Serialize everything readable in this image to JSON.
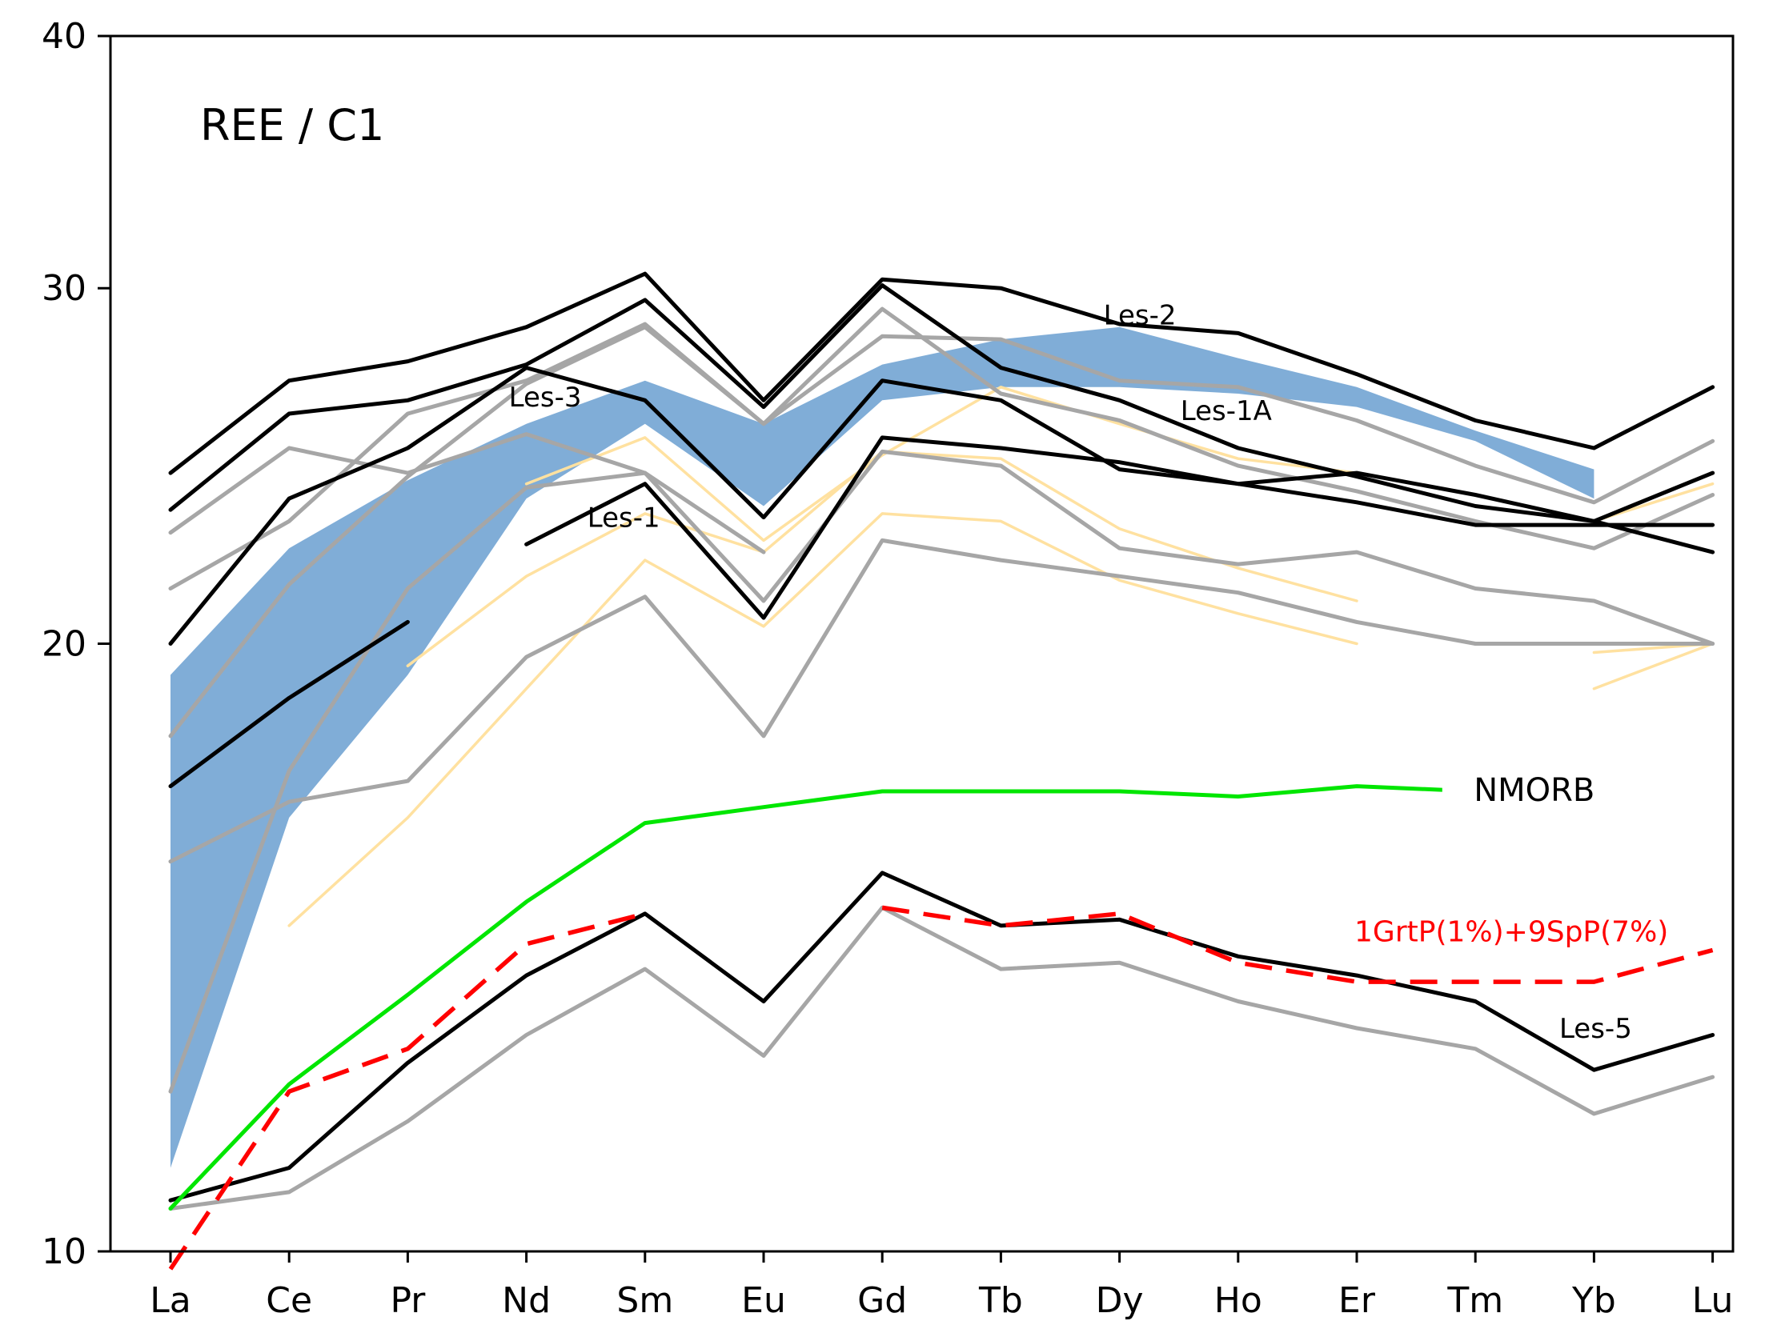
{
  "chart_data": {
    "type": "line",
    "title": "REE / C1",
    "xlabel": "",
    "ylabel": "",
    "y_scale": "log",
    "ylim": [
      10,
      40
    ],
    "yticks": [
      "10",
      "20",
      "30",
      "40"
    ],
    "categories": [
      "La",
      "Ce",
      "Pr",
      "Nd",
      "Sm",
      "Eu",
      "Gd",
      "Tb",
      "Dy",
      "Ho",
      "Er",
      "Tm",
      "Yb",
      "Lu"
    ],
    "grid": false,
    "legend": "none",
    "colors": {
      "black": "#000000",
      "gray": "#a6a6a6",
      "yellow": "#ffe1a0",
      "band": "#6a9fd0",
      "nmorb": "#00e600",
      "model": "#ff0000"
    },
    "band": {
      "upper": [
        19.3,
        22.3,
        24.1,
        25.7,
        27.0,
        25.7,
        27.5,
        28.3,
        28.7,
        27.7,
        26.8,
        25.5,
        24.4,
        null
      ],
      "lower": [
        11.0,
        16.4,
        19.3,
        23.6,
        25.7,
        23.4,
        26.4,
        26.8,
        26.8,
        26.6,
        26.2,
        25.2,
        23.6,
        null
      ]
    },
    "series": [
      {
        "color": "black",
        "values": [
          24.3,
          27.0,
          27.6,
          28.7,
          30.5,
          26.4,
          30.3,
          30.0,
          28.8,
          28.5,
          27.2,
          25.8,
          25.0,
          26.8
        ]
      },
      {
        "color": "black",
        "values": [
          23.3,
          26.0,
          26.4,
          27.5,
          29.6,
          26.2,
          30.1,
          27.4,
          26.4,
          25.0,
          24.2,
          23.4,
          23.0,
          24.3
        ]
      },
      {
        "color": "black",
        "values": [
          20.0,
          23.6,
          25.0,
          27.4,
          26.4,
          23.1,
          27.0,
          26.4,
          24.4,
          24.0,
          24.3,
          23.7,
          23.0,
          22.2
        ]
      },
      {
        "color": "black",
        "values": [
          null,
          null,
          null,
          22.4,
          24.0,
          20.6,
          25.3,
          25.0,
          24.6,
          24.0,
          23.5,
          22.9,
          22.9,
          22.9
        ]
      },
      {
        "color": "black",
        "values": [
          17.0,
          18.8,
          20.5,
          null,
          null,
          null,
          null,
          null,
          null,
          null,
          null,
          null,
          null,
          null
        ]
      },
      {
        "color": "black",
        "values": [
          10.6,
          11.0,
          12.4,
          13.7,
          14.7,
          13.3,
          15.4,
          14.5,
          14.6,
          14.0,
          13.7,
          13.3,
          12.3,
          12.8
        ]
      },
      {
        "color": "gray",
        "values": [
          22.7,
          25.0,
          24.3,
          25.4,
          24.3,
          21.0,
          24.9,
          24.5,
          22.3,
          21.9,
          22.2,
          21.3,
          21.0,
          20.0
        ]
      },
      {
        "color": "gray",
        "values": [
          21.3,
          23.0,
          26.0,
          27.0,
          28.8,
          25.7,
          29.3,
          26.6,
          25.8,
          24.5,
          23.8,
          23.0,
          22.3,
          23.7
        ]
      },
      {
        "color": "gray",
        "values": [
          18.0,
          21.4,
          24.2,
          26.9,
          28.7,
          25.7,
          28.4,
          28.3,
          27.0,
          26.8,
          25.8,
          24.5,
          23.5,
          25.2
        ]
      },
      {
        "color": "gray",
        "values": [
          15.6,
          16.7,
          17.1,
          19.7,
          21.1,
          18.0,
          22.5,
          22.0,
          21.6,
          21.2,
          20.5,
          20.0,
          20.0,
          20.0
        ]
      },
      {
        "color": "gray",
        "values": [
          12.0,
          17.3,
          21.3,
          23.9,
          24.3,
          22.2,
          null,
          null,
          null,
          null,
          null,
          null,
          null,
          null
        ]
      },
      {
        "color": "gray",
        "values": [
          10.5,
          10.7,
          11.6,
          12.8,
          13.8,
          12.5,
          14.8,
          13.8,
          13.9,
          13.3,
          12.9,
          12.6,
          11.7,
          12.2
        ]
      },
      {
        "color": "yellow",
        "values": [
          null,
          14.5,
          16.4,
          19.0,
          22.0,
          20.4,
          23.2,
          23.0,
          21.5,
          20.7,
          20.0,
          null,
          19.0,
          20.0
        ]
      },
      {
        "color": "yellow",
        "values": [
          null,
          null,
          19.5,
          21.6,
          23.2,
          22.2,
          24.9,
          24.7,
          22.8,
          21.8,
          21.0,
          null,
          null,
          null
        ]
      },
      {
        "color": "yellow",
        "values": [
          null,
          null,
          null,
          24.0,
          25.3,
          22.5,
          24.8,
          26.8,
          25.7,
          24.7,
          24.3,
          null,
          23.0,
          24.0
        ]
      },
      {
        "color": "yellow",
        "values": [
          null,
          null,
          null,
          null,
          null,
          null,
          null,
          null,
          null,
          null,
          null,
          null,
          19.8,
          20.0
        ]
      },
      {
        "name": "NMORB",
        "color": "nmorb",
        "values": [
          10.5,
          12.1,
          13.4,
          14.9,
          16.3,
          16.6,
          16.9,
          16.9,
          16.9,
          16.8,
          17.0,
          16.9,
          null,
          16.9
        ]
      },
      {
        "name": "1GrtP(1%)+9SpP(7%)",
        "color": "model",
        "dashed": true,
        "values": [
          9.8,
          12.0,
          12.6,
          14.2,
          14.7,
          null,
          14.8,
          14.5,
          14.7,
          13.9,
          13.6,
          13.6,
          13.6,
          14.1
        ]
      }
    ],
    "annotations": [
      {
        "text": "Les-2",
        "category": "Dy",
        "value": 29.1
      },
      {
        "text": "Les-3",
        "category": "Nd",
        "value": 26.5
      },
      {
        "text": "Les-1A",
        "category": "Ho",
        "value": 26.1
      },
      {
        "text": "Les-1",
        "category": "Sm",
        "value": 23.1
      },
      {
        "text": "NMORB",
        "category": "Ho",
        "value": 16.9
      },
      {
        "text": "1GrtP(1%)+9SpP(7%)",
        "category": "Tm",
        "value": 14.4
      },
      {
        "text": "Les-5",
        "category": "Yb",
        "value": 12.9
      }
    ]
  }
}
